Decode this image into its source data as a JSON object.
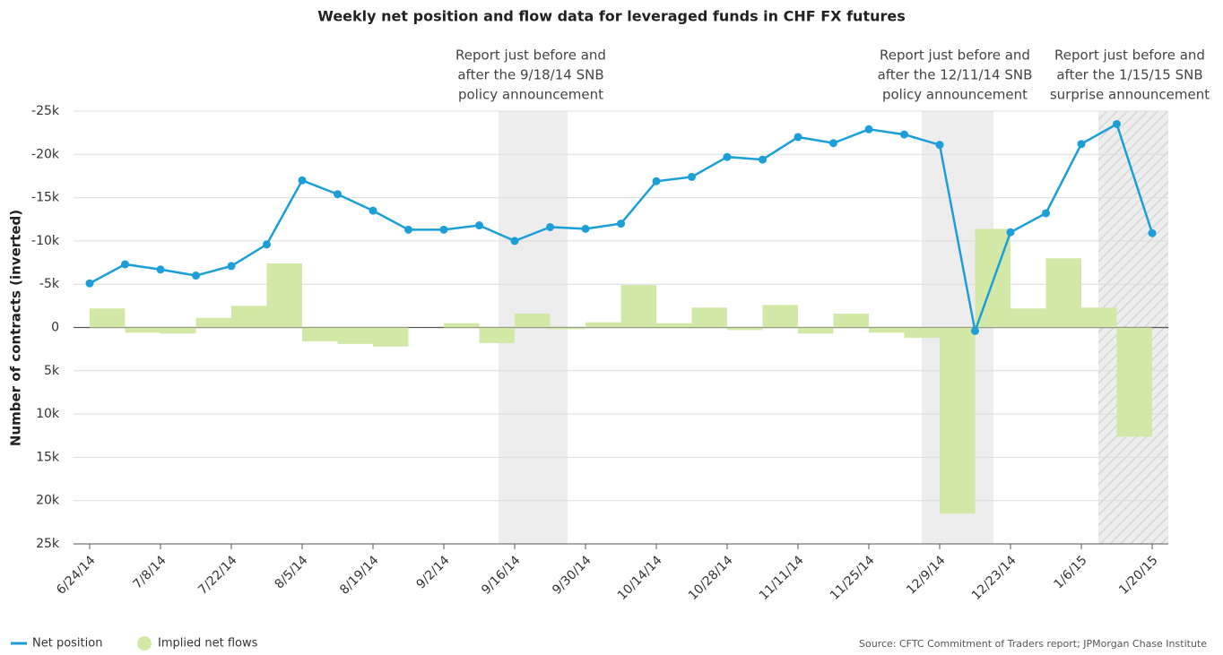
{
  "chart_data": {
    "type": "line_bar",
    "title": "Weekly net position and flow data for leveraged funds in CHF FX futures",
    "y_label": "Number of contracts (inverted)",
    "source": "Source: CFTC Commitment of Traders report; JPMorgan Chase Institute",
    "annotations": [
      [
        "Report just before and",
        "after the 9/18/14 SNB",
        "policy announcement"
      ],
      [
        "Report just before and",
        "after the 12/11/14 SNB",
        "policy announcement"
      ],
      [
        "Report just before and",
        "after the 1/15/15 SNB",
        "surprise announcement"
      ]
    ],
    "categories": [
      "6/24/14",
      null,
      "7/8/14",
      null,
      "7/22/14",
      null,
      "8/5/14",
      null,
      "8/19/14",
      null,
      "9/2/14",
      null,
      "9/16/14",
      null,
      "9/30/14",
      null,
      "10/14/14",
      null,
      "10/28/14",
      null,
      "11/11/14",
      null,
      "11/25/14",
      null,
      "12/9/14",
      null,
      "12/23/14",
      null,
      "1/6/15",
      null,
      "1/20/15"
    ],
    "series": [
      {
        "name": "Net position",
        "color": "#1c9fd9",
        "kind": "line",
        "values": [
          -5100,
          -7300,
          -6700,
          -6000,
          -7100,
          -9600,
          -17000,
          -15400,
          -13500,
          -11300,
          -11300,
          -11800,
          -10000,
          -11600,
          -11400,
          -12000,
          -16900,
          -17400,
          -19700,
          -19400,
          -22000,
          -21300,
          -22900,
          -22300,
          -21100,
          400,
          -11000,
          -13200,
          -21200,
          -23500,
          -10900
        ]
      },
      {
        "name": "Implied net flows",
        "color": "#d2e8a6",
        "kind": "bar",
        "values": [
          null,
          -2200,
          600,
          700,
          -1100,
          -2500,
          -7400,
          1600,
          1900,
          2200,
          0,
          -500,
          1800,
          -1600,
          200,
          -600,
          -4900,
          -500,
          -2300,
          300,
          -2600,
          700,
          -1600,
          600,
          1200,
          21500,
          -11400,
          -2200,
          -8000,
          -2300,
          12600
        ]
      }
    ],
    "ylim": [
      -25000,
      25000
    ],
    "y_inverted": true,
    "yticks": [
      {
        "value": -25000,
        "label": "-25k"
      },
      {
        "value": -20000,
        "label": "-20k"
      },
      {
        "value": -15000,
        "label": "-15k"
      },
      {
        "value": -10000,
        "label": "-10k"
      },
      {
        "value": -5000,
        "label": "-5k"
      },
      0,
      {
        "value": 5000,
        "label": "5k"
      },
      {
        "value": 10000,
        "label": "10k"
      },
      {
        "value": 15000,
        "label": "15k"
      },
      {
        "value": 20000,
        "label": "20k"
      },
      {
        "value": 25000,
        "label": "25k"
      }
    ],
    "grid": true
  }
}
